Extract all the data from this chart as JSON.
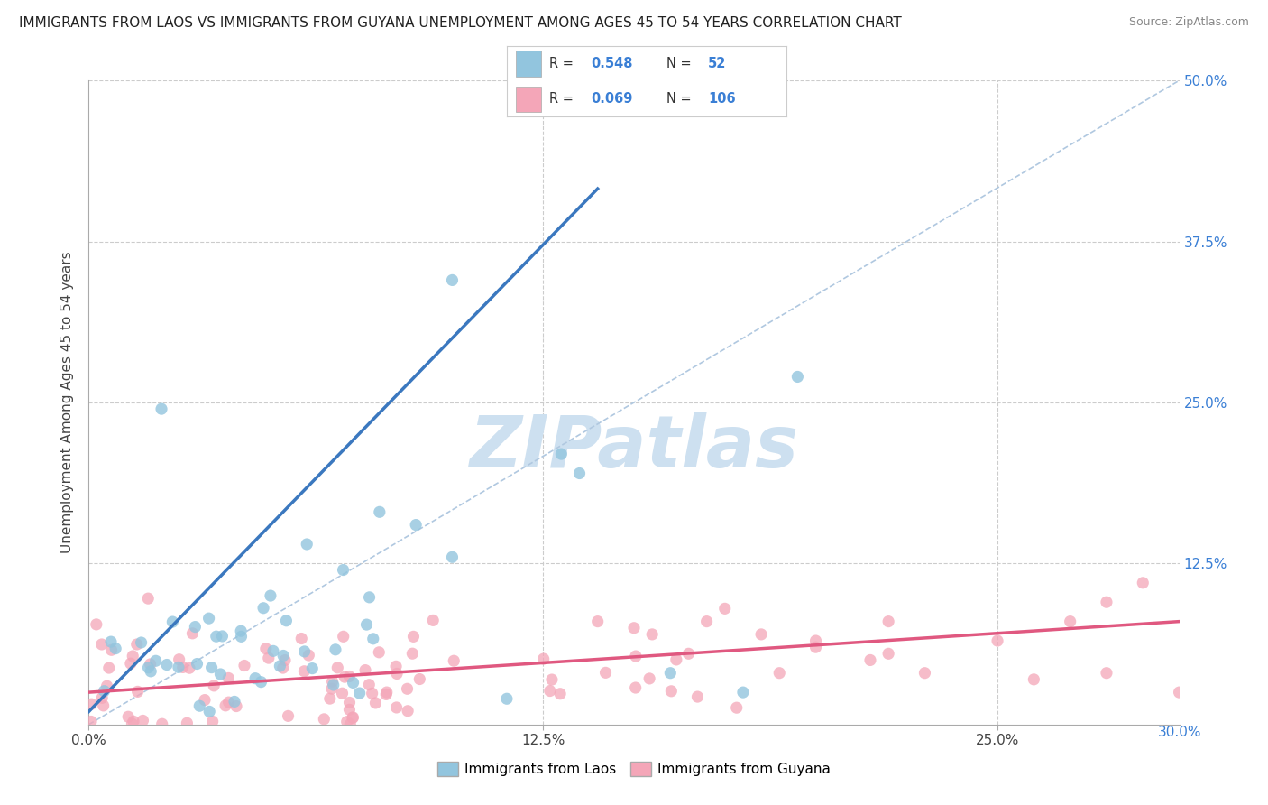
{
  "title": "IMMIGRANTS FROM LAOS VS IMMIGRANTS FROM GUYANA UNEMPLOYMENT AMONG AGES 45 TO 54 YEARS CORRELATION CHART",
  "source": "Source: ZipAtlas.com",
  "ylabel": "Unemployment Among Ages 45 to 54 years",
  "xlim": [
    0.0,
    0.3
  ],
  "ylim": [
    0.0,
    0.5
  ],
  "xtick_positions": [
    0.0,
    0.125,
    0.25
  ],
  "xtick_labels": [
    "0.0%",
    "12.5%",
    "25.0%"
  ],
  "ytick_positions": [
    0.125,
    0.25,
    0.375,
    0.5
  ],
  "ytick_labels": [
    "12.5%",
    "25.0%",
    "37.5%",
    "50.0%"
  ],
  "laos_R": 0.548,
  "laos_N": 52,
  "guyana_R": 0.069,
  "guyana_N": 106,
  "laos_color": "#92c5de",
  "guyana_color": "#f4a6b8",
  "laos_line_color": "#3b78bf",
  "guyana_line_color": "#e05880",
  "ref_line_color": "#b0c8e0",
  "background_color": "#ffffff",
  "watermark": "ZIPatlas",
  "watermark_color": "#cde0f0",
  "legend_labels": [
    "Immigrants from Laos",
    "Immigrants from Guyana"
  ],
  "title_fontsize": 11,
  "axis_label_fontsize": 11,
  "tick_fontsize": 11,
  "legend_fontsize": 11,
  "source_fontsize": 9,
  "blue_text_color": "#3a7fd5",
  "black_text_color": "#333333"
}
